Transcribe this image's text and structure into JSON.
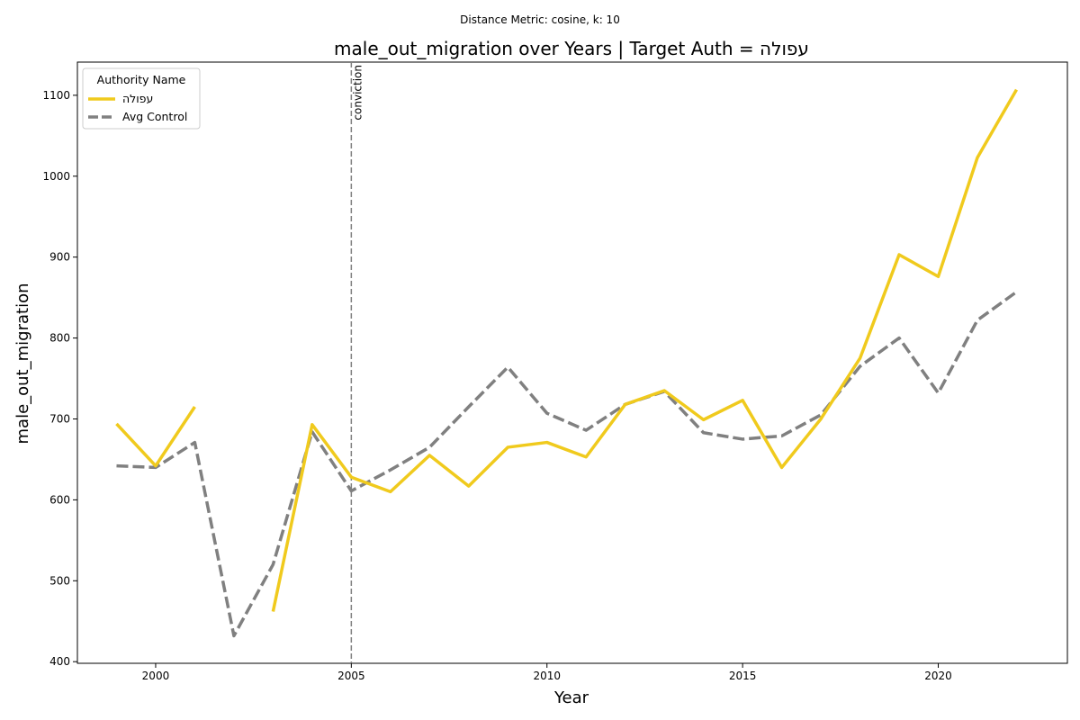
{
  "chart_data": {
    "type": "line",
    "subtitle": "Distance Metric: cosine, k: 10",
    "title": "male_out_migration over Years | Target Auth = עפולה",
    "xlabel": "Year",
    "ylabel": "male_out_migration",
    "xlim": [
      1998,
      2023.3
    ],
    "ylim": [
      398,
      1141
    ],
    "xticks": [
      2000,
      2005,
      2010,
      2015,
      2020
    ],
    "yticks": [
      400,
      500,
      600,
      700,
      800,
      900,
      1000,
      1100
    ],
    "grid": false,
    "legend": {
      "title": "Authority Name",
      "placement": "top-left"
    },
    "annotation": {
      "x": 2005,
      "label": "conviction"
    },
    "series": [
      {
        "name": "עפולה",
        "color": "#f0ca1d",
        "style": "solid",
        "points": [
          [
            1999,
            694
          ],
          [
            2000,
            642
          ],
          [
            2001,
            715
          ],
          [
            2003,
            462
          ],
          [
            2004,
            693
          ],
          [
            2005,
            628
          ],
          [
            2006,
            610
          ],
          [
            2007,
            655
          ],
          [
            2008,
            617
          ],
          [
            2009,
            665
          ],
          [
            2010,
            671
          ],
          [
            2011,
            653
          ],
          [
            2012,
            718
          ],
          [
            2013,
            735
          ],
          [
            2014,
            699
          ],
          [
            2015,
            723
          ],
          [
            2016,
            640
          ],
          [
            2017,
            700
          ],
          [
            2018,
            775
          ],
          [
            2019,
            903
          ],
          [
            2020,
            876
          ],
          [
            2021,
            1023
          ],
          [
            2022,
            1107
          ]
        ]
      },
      {
        "name": "Avg Control",
        "color": "#808080",
        "style": "dashed",
        "points": [
          [
            1999,
            642
          ],
          [
            2000,
            640
          ],
          [
            2001,
            671
          ],
          [
            2002,
            432
          ],
          [
            2003,
            520
          ],
          [
            2004,
            684
          ],
          [
            2005,
            611
          ],
          [
            2006,
            637
          ],
          [
            2007,
            665
          ],
          [
            2008,
            715
          ],
          [
            2009,
            764
          ],
          [
            2010,
            707
          ],
          [
            2011,
            686
          ],
          [
            2012,
            718
          ],
          [
            2013,
            734
          ],
          [
            2014,
            683
          ],
          [
            2015,
            675
          ],
          [
            2016,
            679
          ],
          [
            2017,
            705
          ],
          [
            2018,
            765
          ],
          [
            2019,
            800
          ],
          [
            2020,
            732
          ],
          [
            2021,
            822
          ],
          [
            2022,
            857
          ]
        ]
      }
    ]
  }
}
